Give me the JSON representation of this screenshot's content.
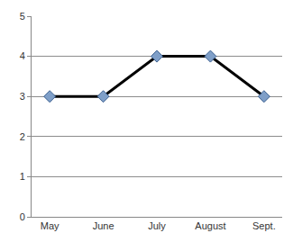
{
  "chart_data": {
    "type": "line",
    "categories": [
      "May",
      "June",
      "July",
      "August",
      "Sept."
    ],
    "values": [
      3,
      3,
      4,
      4,
      3
    ],
    "color": "#000000",
    "marker": "diamond",
    "ylim": [
      0,
      5
    ],
    "yticks": [
      0,
      1,
      2,
      3,
      4,
      5
    ],
    "grid": true
  }
}
